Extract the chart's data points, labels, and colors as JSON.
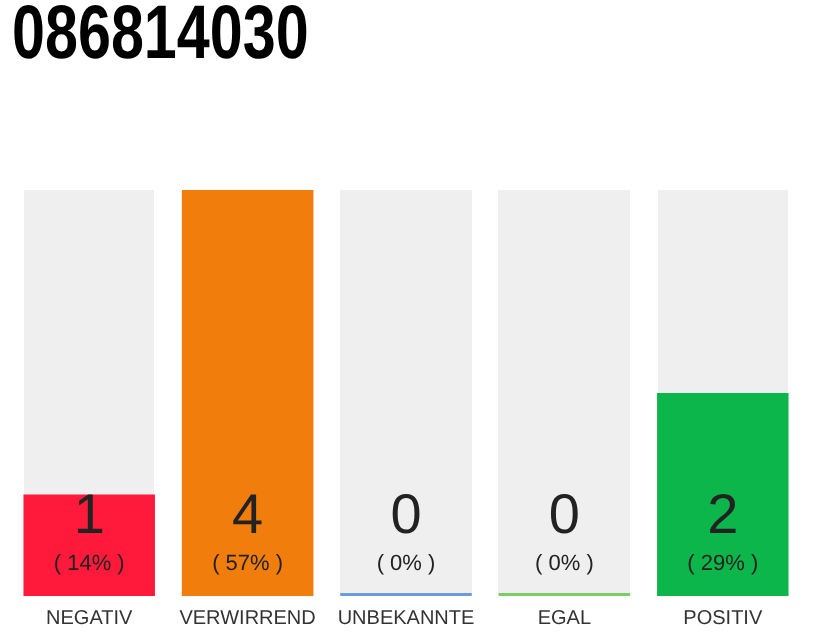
{
  "chart_data": {
    "type": "bar",
    "title": "086814030",
    "categories": [
      "NEGATIV",
      "VERWIRREND",
      "UNBEKANNTE",
      "EGAL",
      "POSITIV"
    ],
    "values": [
      1,
      4,
      0,
      0,
      2
    ],
    "colors": [
      "#ff1a3c",
      "#f07d0c",
      "#6a9be0",
      "#7ccc66",
      "#0db64a"
    ],
    "data_labels": true,
    "annotations": [
      "( 14% )",
      "( 57% )",
      "( 0% )",
      "( 0% )",
      "( 29% )"
    ],
    "grid": false,
    "legend": false
  }
}
